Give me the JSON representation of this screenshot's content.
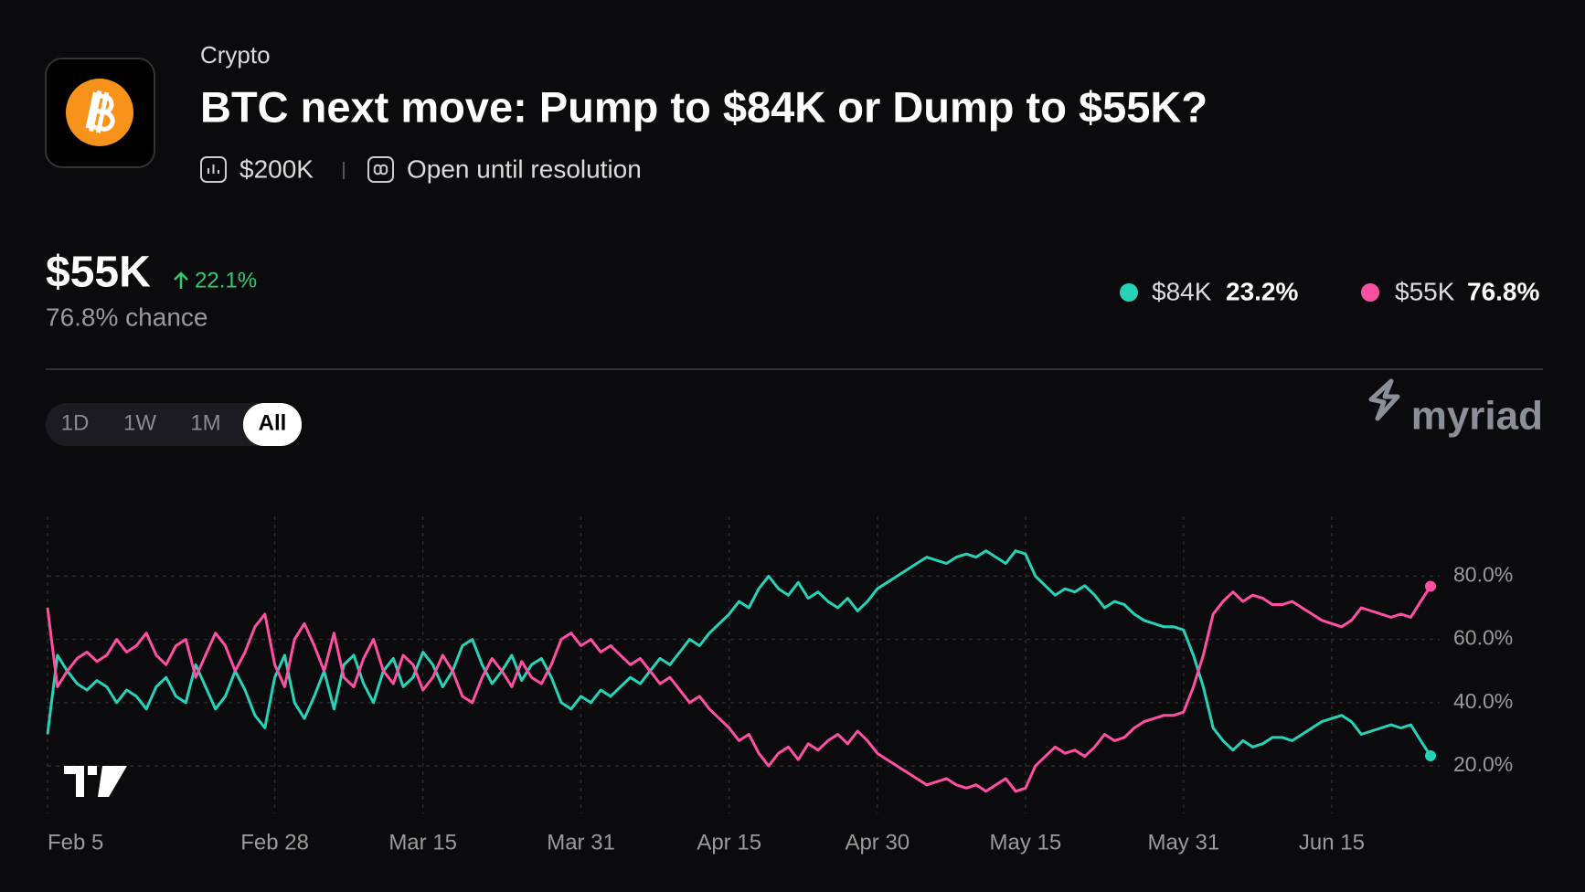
{
  "header": {
    "category": "Crypto",
    "title": "BTC next move: Pump to $84K or Dump to $55K?",
    "volume": "$200K",
    "status": "Open until resolution"
  },
  "summary": {
    "outcome": "$55K",
    "change": "22.1%",
    "chance": "76.8% chance"
  },
  "ranges": [
    "1D",
    "1W",
    "1M",
    "All"
  ],
  "brand": "myriad",
  "chart_data": {
    "type": "line",
    "categories": [
      "Feb 5",
      null,
      null,
      null,
      null,
      null,
      null,
      null,
      null,
      null,
      null,
      null,
      null,
      null,
      null,
      null,
      null,
      null,
      null,
      null,
      null,
      null,
      null,
      "Feb 28",
      null,
      null,
      null,
      null,
      null,
      null,
      null,
      null,
      null,
      null,
      null,
      null,
      null,
      null,
      "Mar 15",
      null,
      null,
      null,
      null,
      null,
      null,
      null,
      null,
      null,
      null,
      null,
      null,
      null,
      null,
      null,
      "Mar 31",
      null,
      null,
      null,
      null,
      null,
      null,
      null,
      null,
      null,
      null,
      null,
      null,
      null,
      null,
      "Apr 15",
      null,
      null,
      null,
      null,
      null,
      null,
      null,
      null,
      null,
      null,
      null,
      null,
      null,
      null,
      "Apr 30",
      null,
      null,
      null,
      null,
      null,
      null,
      null,
      null,
      null,
      null,
      null,
      null,
      null,
      null,
      "May 15",
      null,
      null,
      null,
      null,
      null,
      null,
      null,
      null,
      null,
      null,
      null,
      null,
      null,
      null,
      null,
      "May 31",
      null,
      null,
      null,
      null,
      null,
      null,
      null,
      null,
      null,
      null,
      null,
      null,
      null,
      null,
      "Jun 15",
      null,
      null,
      null,
      null,
      null,
      null,
      null,
      null,
      null,
      null
    ],
    "series": [
      {
        "name": "$84K",
        "color": "#27d3b8",
        "current_label": "23.2%",
        "values": [
          30,
          55,
          50,
          46,
          44,
          47,
          45,
          40,
          44,
          42,
          38,
          45,
          48,
          42,
          40,
          52,
          45,
          38,
          42,
          50,
          44,
          36,
          32,
          48,
          55,
          40,
          35,
          42,
          50,
          38,
          52,
          55,
          46,
          40,
          50,
          54,
          45,
          48,
          56,
          52,
          45,
          50,
          58,
          60,
          52,
          46,
          50,
          55,
          47,
          52,
          54,
          48,
          40,
          38,
          42,
          40,
          44,
          42,
          45,
          48,
          46,
          50,
          54,
          52,
          56,
          60,
          58,
          62,
          65,
          68,
          72,
          70,
          76,
          80,
          76,
          74,
          78,
          73,
          75,
          72,
          70,
          73,
          69,
          72,
          76,
          78,
          80,
          82,
          84,
          86,
          85,
          84,
          86,
          87,
          86,
          88,
          86,
          84,
          88,
          87,
          80,
          77,
          74,
          76,
          75,
          77,
          74,
          70,
          72,
          71,
          68,
          66,
          65,
          64,
          64,
          63,
          55,
          45,
          32,
          28,
          25,
          28,
          26,
          27,
          29,
          29,
          28,
          30,
          32,
          34,
          35,
          36,
          34,
          30,
          31,
          32,
          33,
          32,
          33,
          28,
          23.2
        ]
      },
      {
        "name": "$55K",
        "color": "#ff4fa3",
        "current_label": "76.8%",
        "values": [
          70,
          45,
          50,
          54,
          56,
          53,
          55,
          60,
          56,
          58,
          62,
          55,
          52,
          58,
          60,
          48,
          55,
          62,
          58,
          50,
          56,
          64,
          68,
          52,
          45,
          60,
          65,
          58,
          50,
          62,
          48,
          45,
          54,
          60,
          50,
          46,
          55,
          52,
          44,
          48,
          55,
          50,
          42,
          40,
          48,
          54,
          50,
          45,
          53,
          48,
          46,
          52,
          60,
          62,
          58,
          60,
          56,
          58,
          55,
          52,
          54,
          50,
          46,
          48,
          44,
          40,
          42,
          38,
          35,
          32,
          28,
          30,
          24,
          20,
          24,
          26,
          22,
          27,
          25,
          28,
          30,
          27,
          31,
          28,
          24,
          22,
          20,
          18,
          16,
          14,
          15,
          16,
          14,
          13,
          14,
          12,
          14,
          16,
          12,
          13,
          20,
          23,
          26,
          24,
          25,
          23,
          26,
          30,
          28,
          29,
          32,
          34,
          35,
          36,
          36,
          37,
          45,
          55,
          68,
          72,
          75,
          72,
          74,
          73,
          71,
          71,
          72,
          70,
          68,
          66,
          65,
          64,
          66,
          70,
          69,
          68,
          67,
          68,
          67,
          72,
          76.8
        ]
      }
    ],
    "ylim": [
      5,
      96
    ],
    "yticks": [
      {
        "value": 20,
        "label": "20.0%"
      },
      {
        "value": 40,
        "label": "40.0%"
      },
      {
        "value": 60,
        "label": "60.0%"
      },
      {
        "value": 80,
        "label": "80.0%"
      }
    ],
    "grid": true
  }
}
